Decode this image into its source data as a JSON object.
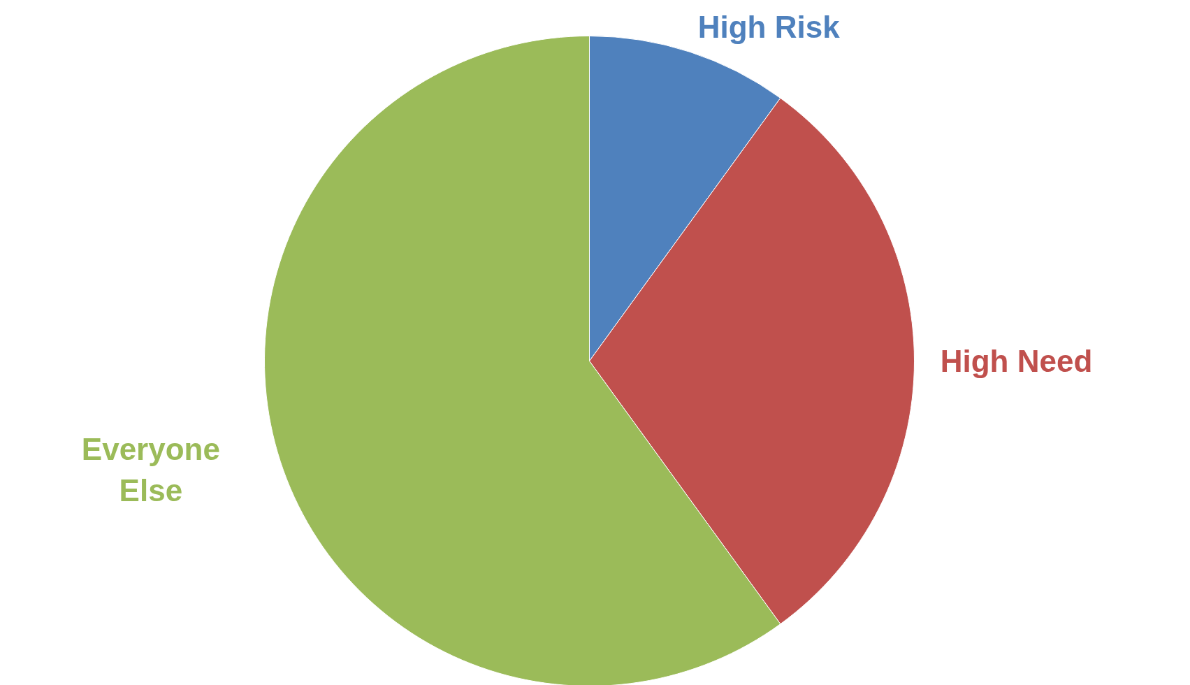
{
  "chart_data": {
    "type": "pie",
    "categories": [
      "High Risk",
      "High Need",
      "Everyone Else"
    ],
    "values": [
      10,
      30,
      60
    ],
    "colors": [
      "#4f81bd",
      "#c0504d",
      "#9bbb59"
    ]
  }
}
